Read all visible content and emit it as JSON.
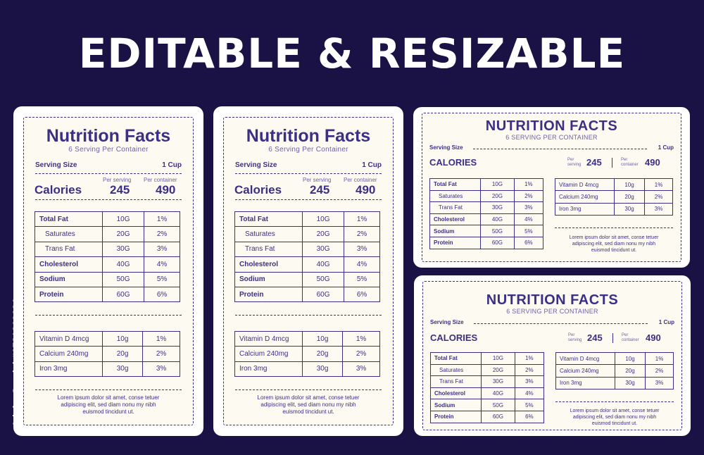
{
  "headline": "EDITABLE & RESIZABLE",
  "credit": "Adobe Stock | #1781862684",
  "colors": {
    "background": "#1a1145",
    "ink": "#3b2f86",
    "card": "#ffffff",
    "panel": "#fdfaf1"
  },
  "label_vertical": {
    "title": "Nutrition Facts",
    "subtitle": "6 Serving Per Container",
    "serving_label": "Serving Size",
    "serving_value": "1 Cup",
    "per_serving": "Per serving",
    "per_container": "Per container",
    "calories_label": "Calories",
    "calories_serving": "245",
    "calories_container": "490",
    "nutrients": [
      {
        "name": "Total Fat",
        "amount": "10G",
        "pct": "1%"
      },
      {
        "name": "Saturates",
        "amount": "20G",
        "pct": "2%"
      },
      {
        "name": "Trans Fat",
        "amount": "30G",
        "pct": "3%"
      },
      {
        "name": "Cholesterol",
        "amount": "40G",
        "pct": "4%"
      },
      {
        "name": "Sodium",
        "amount": "50G",
        "pct": "5%"
      },
      {
        "name": "Protein",
        "amount": "60G",
        "pct": "6%"
      }
    ],
    "vitamins": [
      {
        "name": "Vitamin D 4mcg",
        "amount": "10g",
        "pct": "1%"
      },
      {
        "name": "Calcium  240mg",
        "amount": "20g",
        "pct": "2%"
      },
      {
        "name": "Iron 3mg",
        "amount": "30g",
        "pct": "3%"
      }
    ],
    "note_line1": "Lorem ipsum dolor sit amet, conse tetuer",
    "note_line2": "adipiscing elit, sed diam nonu my nibh",
    "note_line3": "euismod tincidunt ut."
  },
  "label_horizontal": {
    "title": "NUTRITION FACTS",
    "subtitle": "6 SERVING PER CONTAINER",
    "serving_label": "Serving Size",
    "serving_value": "1 Cup",
    "per_serving_1": "Per",
    "per_serving_2": "serving",
    "per_container_1": "Per",
    "per_container_2": "container",
    "calories_label": "CALORIES",
    "calories_serving": "245",
    "calories_container": "490",
    "nutrients": [
      {
        "name": "Total Fat",
        "amount": "10G",
        "pct": "1%"
      },
      {
        "name": "Saturates",
        "amount": "20G",
        "pct": "2%"
      },
      {
        "name": "Trans Fat",
        "amount": "30G",
        "pct": "3%"
      },
      {
        "name": "Cholesterol",
        "amount": "40G",
        "pct": "4%"
      },
      {
        "name": "Sodium",
        "amount": "50G",
        "pct": "5%"
      },
      {
        "name": "Protein",
        "amount": "60G",
        "pct": "6%"
      }
    ],
    "vitamins": [
      {
        "name": "Vitamin D 4mcg",
        "amount": "10g",
        "pct": "1%"
      },
      {
        "name": "Calcium  240mg",
        "amount": "20g",
        "pct": "2%"
      },
      {
        "name": "Iron 3mg",
        "amount": "30g",
        "pct": "3%"
      }
    ],
    "note_line1": "Lorem ipsum dolor sit amet, conse tetuer",
    "note_line2": "adipiscing elit, sed diam nonu my nibh",
    "note_line3": "euismod tincidunt ut."
  }
}
